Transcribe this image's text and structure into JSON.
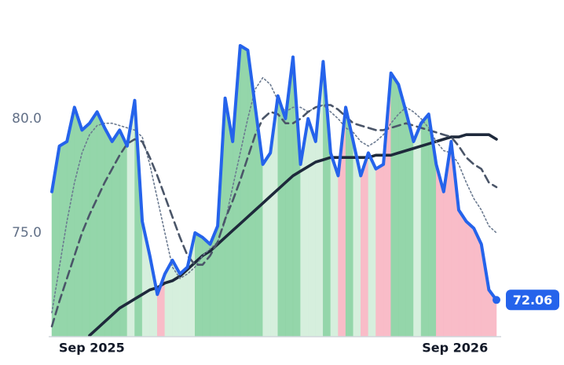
{
  "chart_data": {
    "type": "line",
    "x": [
      0,
      1,
      2,
      3,
      4,
      5,
      6,
      7,
      8,
      9,
      10,
      11,
      12,
      13,
      14,
      15,
      16,
      17,
      18,
      19,
      20,
      21,
      22,
      23,
      24,
      25,
      26,
      27,
      28,
      29,
      30,
      31,
      32,
      33,
      34,
      35,
      36,
      37,
      38,
      39,
      40,
      41,
      42,
      43,
      44,
      45,
      46,
      47,
      48,
      49,
      50,
      51,
      52,
      53,
      54,
      55,
      56,
      57,
      58,
      59
    ],
    "xlim": [
      0,
      59
    ],
    "xticks": [
      {
        "value": 5.3,
        "label": "Sep 2025"
      },
      {
        "value": 53.5,
        "label": "Sep 2026"
      }
    ],
    "ylim": [
      70.45,
      85.2
    ],
    "yticks": [
      {
        "value": 75,
        "label": "75.0"
      },
      {
        "value": 80,
        "label": "80.0"
      }
    ],
    "grid": false,
    "area_colors": {
      "above": "#8fd4a6",
      "between": "#d4efdc",
      "below": "#f9b9c6"
    },
    "series": [
      {
        "color": "#2563eb",
        "style": "price",
        "values": [
          76.8,
          78.8,
          79.0,
          80.5,
          79.5,
          79.8,
          80.3,
          79.6,
          79.0,
          79.5,
          78.8,
          80.8,
          75.5,
          74.0,
          72.3,
          73.2,
          73.8,
          73.2,
          73.5,
          75.0,
          74.8,
          74.5,
          75.3,
          80.9,
          79.0,
          83.2,
          83.0,
          80.5,
          78.0,
          78.5,
          81.0,
          80.0,
          82.7,
          78.0,
          80.0,
          79.0,
          82.5,
          78.5,
          77.5,
          80.5,
          79.0,
          77.5,
          78.5,
          77.8,
          78.0,
          82.0,
          81.5,
          80.3,
          79.0,
          79.8,
          80.2,
          78.0,
          76.8,
          79.0,
          76.0,
          75.5,
          75.2,
          74.5,
          72.5,
          72.06
        ]
      },
      {
        "color": "#4a5568",
        "style": "dashed",
        "values": [
          70.9,
          72.0,
          73.0,
          74.0,
          75.0,
          75.8,
          76.5,
          77.2,
          77.8,
          78.4,
          78.9,
          79.1,
          79.0,
          78.3,
          77.5,
          76.6,
          75.7,
          74.8,
          74.0,
          73.6,
          73.6,
          74.0,
          74.6,
          75.6,
          76.4,
          77.3,
          78.3,
          79.3,
          80.0,
          80.3,
          80.2,
          79.8,
          79.8,
          80.0,
          80.3,
          80.5,
          80.6,
          80.6,
          80.4,
          80.1,
          79.8,
          79.7,
          79.6,
          79.5,
          79.5,
          79.6,
          79.7,
          79.8,
          79.7,
          79.6,
          79.5,
          79.4,
          79.3,
          79.2,
          78.8,
          78.3,
          78.0,
          77.8,
          77.2,
          77.0
        ]
      },
      {
        "color": "#6b7a90",
        "style": "dotted",
        "values": [
          71.5,
          73.5,
          75.5,
          77.2,
          78.5,
          79.3,
          79.7,
          79.8,
          79.8,
          79.7,
          79.6,
          79.5,
          79.2,
          78.0,
          76.5,
          75.0,
          73.5,
          73.0,
          73.2,
          73.5,
          74.0,
          74.3,
          74.6,
          75.5,
          77.0,
          78.5,
          80.0,
          81.3,
          81.8,
          81.5,
          80.8,
          80.3,
          80.5,
          80.5,
          80.3,
          80.5,
          80.6,
          80.3,
          80.0,
          79.6,
          79.4,
          79.0,
          78.8,
          79.0,
          79.3,
          79.8,
          80.2,
          80.5,
          80.3,
          80.0,
          79.6,
          79.0,
          78.6,
          78.5,
          78.0,
          77.2,
          76.5,
          76.0,
          75.3,
          75.0
        ]
      },
      {
        "color": "#1e293b",
        "style": "thick",
        "values": [
          null,
          null,
          null,
          null,
          null,
          70.5,
          70.8,
          71.1,
          71.4,
          71.7,
          71.9,
          72.1,
          72.3,
          72.5,
          72.6,
          72.8,
          72.9,
          73.1,
          73.4,
          73.7,
          74.0,
          74.2,
          74.5,
          74.8,
          75.1,
          75.4,
          75.7,
          76.0,
          76.3,
          76.6,
          76.9,
          77.2,
          77.5,
          77.7,
          77.9,
          78.1,
          78.2,
          78.3,
          78.3,
          78.3,
          78.3,
          78.3,
          78.3,
          78.4,
          78.4,
          78.4,
          78.5,
          78.6,
          78.7,
          78.8,
          78.9,
          79.0,
          79.1,
          79.2,
          79.2,
          79.3,
          79.3,
          79.3,
          79.3,
          79.1
        ]
      }
    ]
  }
}
